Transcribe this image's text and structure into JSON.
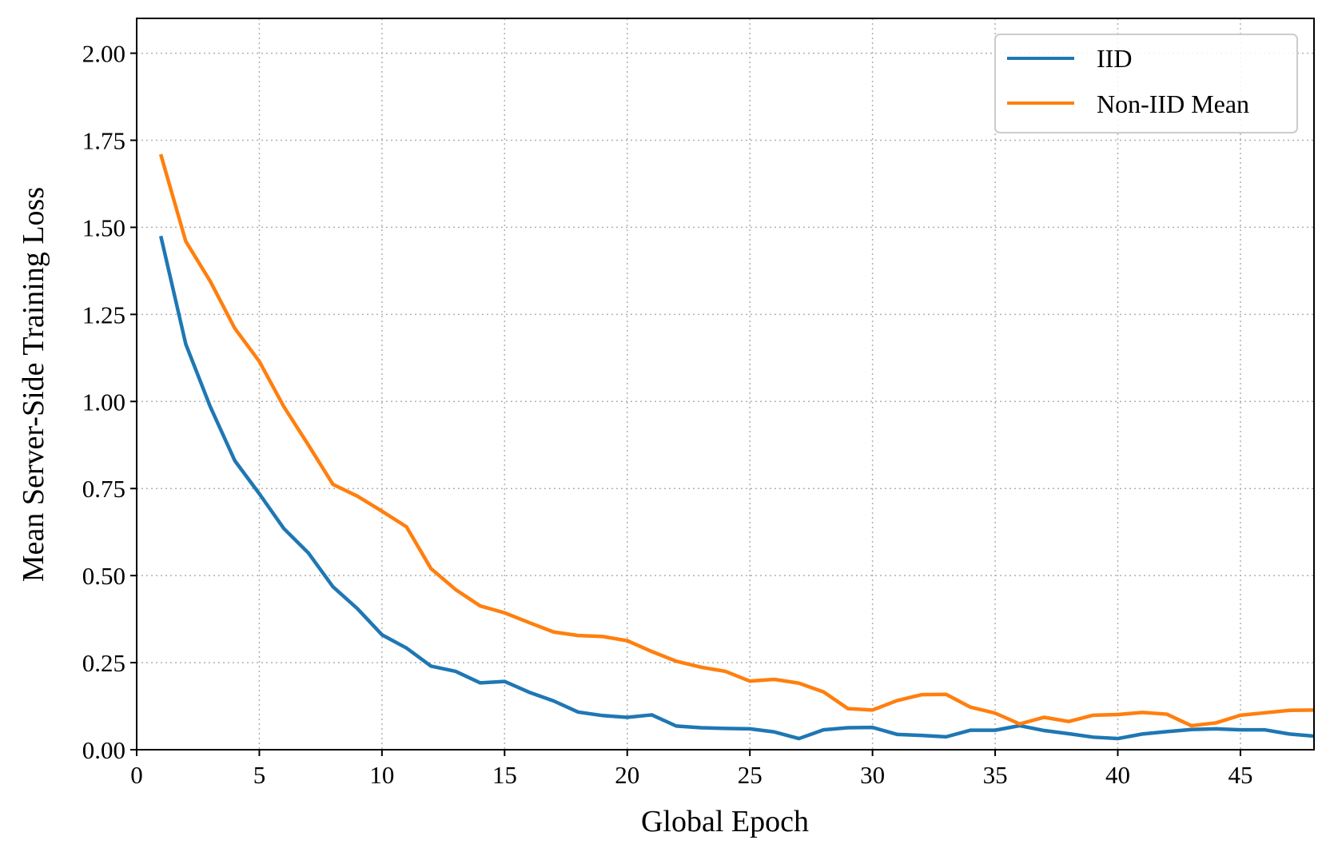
{
  "chart_data": {
    "type": "line",
    "title": "",
    "xlabel": "Global Epoch",
    "ylabel": "Mean Server-Side Training Loss",
    "xlim": [
      0,
      48
    ],
    "ylim": [
      0,
      2.1
    ],
    "xticks": [
      0,
      5,
      10,
      15,
      20,
      25,
      30,
      35,
      40,
      45
    ],
    "xtick_labels": [
      "0",
      "5",
      "10",
      "15",
      "20",
      "25",
      "30",
      "35",
      "40",
      "45"
    ],
    "yticks": [
      0,
      0.25,
      0.5,
      0.75,
      1.0,
      1.25,
      1.5,
      1.75,
      2.0
    ],
    "ytick_labels": [
      "0.00",
      "0.25",
      "0.50",
      "0.75",
      "1.00",
      "1.25",
      "1.50",
      "1.75",
      "2.00"
    ],
    "grid": true,
    "legend_position": "top-right",
    "x": [
      1,
      2,
      3,
      4,
      5,
      6,
      7,
      8,
      9,
      10,
      11,
      12,
      13,
      14,
      15,
      16,
      17,
      18,
      19,
      20,
      21,
      22,
      23,
      24,
      25,
      26,
      27,
      28,
      29,
      30,
      31,
      32,
      33,
      34,
      35,
      36,
      37,
      38,
      39,
      40,
      41,
      42,
      43,
      44,
      45,
      46,
      47,
      48
    ],
    "series": [
      {
        "name": "IID",
        "color": "#1f77b4",
        "values": [
          1.47,
          1.165,
          0.985,
          0.83,
          0.735,
          0.635,
          0.565,
          0.468,
          0.405,
          0.33,
          0.292,
          0.24,
          0.225,
          0.192,
          0.196,
          0.165,
          0.14,
          0.108,
          0.098,
          0.093,
          0.1,
          0.068,
          0.063,
          0.061,
          0.06,
          0.051,
          0.032,
          0.057,
          0.063,
          0.064,
          0.044,
          0.041,
          0.037,
          0.056,
          0.056,
          0.069,
          0.055,
          0.046,
          0.036,
          0.032,
          0.045,
          0.052,
          0.058,
          0.06,
          0.057,
          0.057,
          0.045,
          0.039
        ]
      },
      {
        "name": "Non-IID Mean",
        "color": "#ff7f0e",
        "values": [
          1.705,
          1.46,
          1.345,
          1.21,
          1.115,
          0.985,
          0.875,
          0.762,
          0.728,
          0.685,
          0.64,
          0.52,
          0.46,
          0.413,
          0.393,
          0.365,
          0.338,
          0.328,
          0.325,
          0.313,
          0.282,
          0.254,
          0.237,
          0.225,
          0.197,
          0.202,
          0.191,
          0.166,
          0.118,
          0.114,
          0.141,
          0.158,
          0.159,
          0.122,
          0.105,
          0.074,
          0.093,
          0.081,
          0.099,
          0.101,
          0.107,
          0.102,
          0.069,
          0.077,
          0.099,
          0.106,
          0.113,
          0.114
        ]
      }
    ]
  }
}
